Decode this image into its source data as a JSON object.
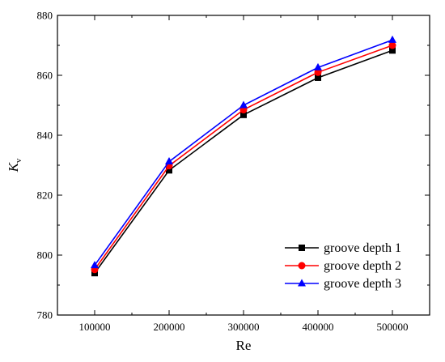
{
  "chart_data": {
    "type": "line",
    "x": [
      100000,
      200000,
      300000,
      400000,
      500000
    ],
    "xlabel": "Re",
    "ylabel_main": "K",
    "ylabel_sub": "v",
    "xlim": [
      50000,
      550000
    ],
    "ylim": [
      780,
      880
    ],
    "xticks": [
      100000,
      200000,
      300000,
      400000,
      500000
    ],
    "yticks": [
      780,
      800,
      820,
      840,
      860,
      880
    ],
    "grid": false,
    "legend_position": "bottom-right",
    "series": [
      {
        "name": "groove depth 1",
        "color": "#000000",
        "marker": "square",
        "values": [
          794.0,
          828.3,
          846.8,
          859.2,
          868.3
        ]
      },
      {
        "name": "groove depth 2",
        "color": "#ff0000",
        "marker": "circle",
        "values": [
          795.2,
          829.8,
          848.5,
          861.0,
          870.0
        ]
      },
      {
        "name": "groove depth 3",
        "color": "#0000ff",
        "marker": "triangle",
        "values": [
          796.6,
          831.2,
          850.0,
          862.6,
          871.8
        ]
      }
    ]
  }
}
